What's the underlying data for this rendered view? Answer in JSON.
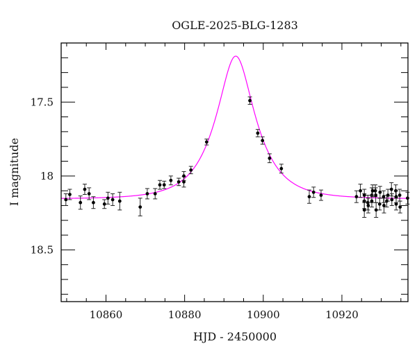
{
  "chart_data": {
    "type": "scatter",
    "title": "OGLE-2025-BLG-1283",
    "xlabel": "HJD - 2450000",
    "ylabel": "I magnitude",
    "xlim": [
      10848.6,
      10936.8
    ],
    "ylim": [
      18.85,
      17.1
    ],
    "y_inverted": true,
    "grid": false,
    "x_ticks": [
      10860,
      10880,
      10900,
      10920
    ],
    "x_tick_labels": [
      "10860",
      "10880",
      "10900",
      "10920"
    ],
    "y_ticks": [
      17.5,
      18,
      18.5
    ],
    "y_tick_labels": [
      "17.5",
      "18",
      "18.5"
    ],
    "series": [
      {
        "kind": "points-with-errorbars",
        "color": "#000000",
        "points": [
          [
            10849.8,
            18.16,
            0.04
          ],
          [
            10850.8,
            18.125,
            0.035
          ],
          [
            10853.5,
            18.18,
            0.045
          ],
          [
            10854.6,
            18.09,
            0.035
          ],
          [
            10855.7,
            18.12,
            0.04
          ],
          [
            10856.8,
            18.18,
            0.04
          ],
          [
            10859.6,
            18.19,
            0.03
          ],
          [
            10860.5,
            18.15,
            0.04
          ],
          [
            10861.7,
            18.16,
            0.04
          ],
          [
            10863.5,
            18.17,
            0.06
          ],
          [
            10868.7,
            18.21,
            0.06
          ],
          [
            10870.5,
            18.12,
            0.035
          ],
          [
            10872.5,
            18.12,
            0.035
          ],
          [
            10873.7,
            18.06,
            0.03
          ],
          [
            10874.8,
            18.06,
            0.025
          ],
          [
            10876.5,
            18.03,
            0.03
          ],
          [
            10878.5,
            18.04,
            0.025
          ],
          [
            10879.8,
            18.04,
            0.035
          ],
          [
            10879.8,
            18.0,
            0.03
          ],
          [
            10881.6,
            17.96,
            0.025
          ],
          [
            10885.6,
            17.77,
            0.02
          ],
          [
            10896.6,
            17.49,
            0.025
          ],
          [
            10898.6,
            17.71,
            0.025
          ],
          [
            10899.8,
            17.76,
            0.025
          ],
          [
            10901.6,
            17.88,
            0.03
          ],
          [
            10904.6,
            17.95,
            0.03
          ],
          [
            10911.7,
            18.14,
            0.045
          ],
          [
            10912.8,
            18.11,
            0.035
          ],
          [
            10914.7,
            18.13,
            0.035
          ],
          [
            10923.7,
            18.14,
            0.04
          ],
          [
            10924.7,
            18.1,
            0.045
          ],
          [
            10925.7,
            18.17,
            0.05
          ],
          [
            10925.7,
            18.23,
            0.05
          ],
          [
            10925.7,
            18.13,
            0.04
          ],
          [
            10926.6,
            18.18,
            0.05
          ],
          [
            10926.7,
            18.2,
            0.05
          ],
          [
            10927.6,
            18.13,
            0.05
          ],
          [
            10927.6,
            18.17,
            0.04
          ],
          [
            10927.8,
            18.1,
            0.04
          ],
          [
            10928.5,
            18.1,
            0.04
          ],
          [
            10928.6,
            18.13,
            0.05
          ],
          [
            10928.7,
            18.23,
            0.05
          ],
          [
            10929.6,
            18.19,
            0.04
          ],
          [
            10929.7,
            18.11,
            0.04
          ],
          [
            10930.6,
            18.14,
            0.04
          ],
          [
            10930.7,
            18.2,
            0.05
          ],
          [
            10931.4,
            18.17,
            0.04
          ],
          [
            10931.7,
            18.13,
            0.04
          ],
          [
            10932.6,
            18.09,
            0.045
          ],
          [
            10932.7,
            18.16,
            0.04
          ],
          [
            10933.7,
            18.1,
            0.04
          ],
          [
            10933.8,
            18.19,
            0.04
          ],
          [
            10933.8,
            18.14,
            0.04
          ],
          [
            10934.7,
            18.13,
            0.04
          ],
          [
            10934.8,
            18.21,
            0.04
          ],
          [
            10936.7,
            18.15,
            0.04
          ]
        ]
      },
      {
        "kind": "model-curve",
        "color": "#ff00ff"
      }
    ]
  }
}
